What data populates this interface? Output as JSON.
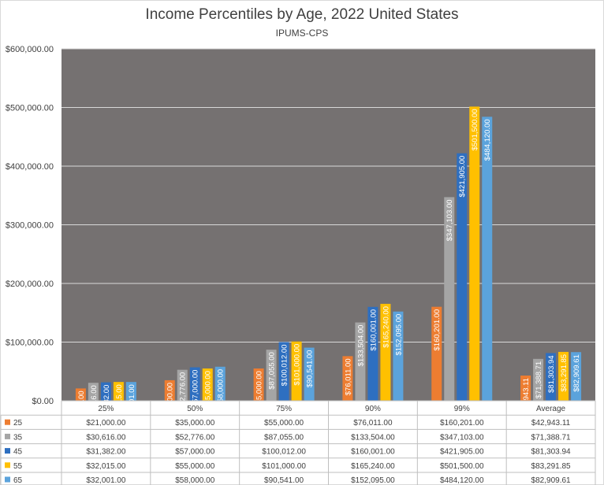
{
  "chart_data": {
    "type": "bar",
    "title": "Income Percentiles by Age, 2022 United States",
    "subtitle": "IPUMS-CPS",
    "categories": [
      "25%",
      "50%",
      "75%",
      "90%",
      "99%",
      "Average"
    ],
    "ylim": [
      0,
      600000
    ],
    "yticks": [
      0,
      100000,
      200000,
      300000,
      400000,
      500000,
      600000
    ],
    "ytick_labels": [
      "$0.00",
      "$100,000.00",
      "$200,000.00",
      "$300,000.00",
      "$400,000.00",
      "$500,000.00",
      "$600,000.00"
    ],
    "plot_background": "#757171",
    "grid": true,
    "data_table": true,
    "series": [
      {
        "name": "25",
        "color": "#ed7d31",
        "values": [
          21000.0,
          35000.0,
          55000.0,
          76011.0,
          160201.0,
          42943.11
        ],
        "labels": [
          "$21,000.00",
          "$35,000.00",
          "$55,000.00",
          "$76,011.00",
          "$160,201.00",
          "$42,943.11"
        ]
      },
      {
        "name": "35",
        "color": "#a5a5a5",
        "values": [
          30616.0,
          52776.0,
          87055.0,
          133504.0,
          347103.0,
          71388.71
        ],
        "labels": [
          "$30,616.00",
          "$52,776.00",
          "$87,055.00",
          "$133,504.00",
          "$347,103.00",
          "$71,388.71"
        ]
      },
      {
        "name": "45",
        "color": "#2e6fc0",
        "values": [
          31382.0,
          57000.0,
          100012.0,
          160001.0,
          421905.0,
          81303.94
        ],
        "labels": [
          "$31,382.00",
          "$57,000.00",
          "$100,012.00",
          "$160,001.00",
          "$421,905.00",
          "$81,303.94"
        ]
      },
      {
        "name": "55",
        "color": "#ffc000",
        "values": [
          32015.0,
          55000.0,
          101000.0,
          165240.0,
          501500.0,
          83291.85
        ],
        "labels": [
          "$32,015.00",
          "$55,000.00",
          "$101,000.00",
          "$165,240.00",
          "$501,500.00",
          "$83,291.85"
        ]
      },
      {
        "name": "65",
        "color": "#5ba3dc",
        "values": [
          32001.0,
          58000.0,
          90541.0,
          152095.0,
          484120.0,
          82909.61
        ],
        "labels": [
          "$32,001.00",
          "$58,000.00",
          "$90,541.00",
          "$152,095.00",
          "$484,120.00",
          "$82,909.61"
        ]
      }
    ]
  }
}
